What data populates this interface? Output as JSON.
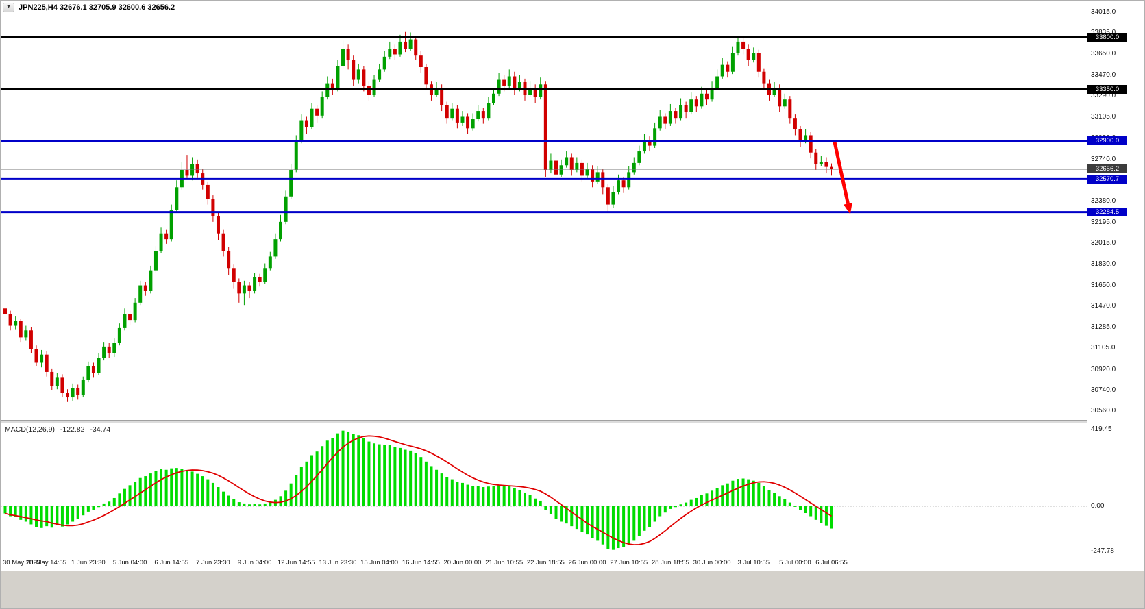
{
  "window": {
    "collapse_button": "▼",
    "symbol_title": "JPN225,H4",
    "ohlc_readout": "32676.1 32705.9 32600.6 32656.2"
  },
  "chart_data": [
    {
      "type": "candlestick",
      "symbol": "JPN225",
      "timeframe": "H4",
      "last_ohlc": [
        32676.1,
        32705.9,
        32600.6,
        32656.2
      ],
      "y_range": [
        30520,
        34080
      ],
      "y_axis_ticks": [
        34015.0,
        33835.0,
        33650.0,
        33470.0,
        33290.0,
        33105.0,
        32925.0,
        32740.0,
        32560.0,
        32380.0,
        32195.0,
        32015.0,
        31830.0,
        31650.0,
        31470.0,
        31285.0,
        31105.0,
        30920.0,
        30740.0,
        30560.0
      ],
      "bull_color": "#00A000",
      "bear_color": "#D10000",
      "levels": [
        {
          "price": 33800.0,
          "label": "33800.0",
          "color": "#000000",
          "width": 2.5,
          "badge_color": "#000000"
        },
        {
          "price": 33350.0,
          "label": "33350.0",
          "color": "#000000",
          "width": 2.5,
          "badge_color": "#000000"
        },
        {
          "price": 32900.0,
          "label": "32900.0",
          "color": "#0000C8",
          "width": 3,
          "badge_color": "#0000C8"
        },
        {
          "price": 32656.2,
          "label": "32656.2",
          "color": "#777777",
          "width": 1,
          "badge_color": "#3c3c3c"
        },
        {
          "price": 32570.7,
          "label": "32570.7",
          "color": "#0000C8",
          "width": 3,
          "badge_color": "#0000C8"
        },
        {
          "price": 32284.5,
          "label": "32284.5",
          "color": "#0000C8",
          "width": 3,
          "badge_color": "#0000C8"
        }
      ],
      "annotation_arrow": {
        "from_index": 159.6,
        "from_price": 32890,
        "to_index": 162.6,
        "to_price": 32265,
        "color": "#FF0000"
      },
      "time_labels": [
        "30 May 2023",
        "31 May 14:55",
        "1 Jun 23:30",
        "5 Jun 04:00",
        "6 Jun 14:55",
        "7 Jun 23:30",
        "9 Jun 04:00",
        "12 Jun 14:55",
        "13 Jun 23:30",
        "15 Jun 04:00",
        "16 Jun 14:55",
        "20 Jun 00:00",
        "21 Jun 10:55",
        "22 Jun 18:55",
        "26 Jun 00:00",
        "27 Jun 10:55",
        "28 Jun 18:55",
        "30 Jun 00:00",
        "3 Jul 10:55",
        "5 Jul 00:00",
        "6 Jul 06:55"
      ],
      "time_label_indices": [
        0,
        8,
        16,
        24,
        32,
        40,
        48,
        56,
        64,
        72,
        80,
        88,
        96,
        104,
        112,
        120,
        128,
        136,
        144,
        152,
        159
      ],
      "candles": [
        [
          31450,
          31480,
          31370,
          31400
        ],
        [
          31400,
          31430,
          31260,
          31300
        ],
        [
          31300,
          31380,
          31270,
          31340
        ],
        [
          31340,
          31360,
          31160,
          31200
        ],
        [
          31200,
          31300,
          31170,
          31260
        ],
        [
          31260,
          31290,
          31060,
          31100
        ],
        [
          31100,
          31130,
          30950,
          30980
        ],
        [
          30980,
          31090,
          30940,
          31050
        ],
        [
          31050,
          31080,
          30860,
          30900
        ],
        [
          30900,
          30930,
          30740,
          30780
        ],
        [
          30780,
          30890,
          30750,
          30850
        ],
        [
          30850,
          30880,
          30680,
          30720
        ],
        [
          30720,
          30750,
          30640,
          30680
        ],
        [
          30680,
          30800,
          30650,
          30760
        ],
        [
          30760,
          30790,
          30660,
          30700
        ],
        [
          30700,
          30860,
          30680,
          30830
        ],
        [
          30830,
          30990,
          30810,
          30950
        ],
        [
          30950,
          30980,
          30850,
          30890
        ],
        [
          30890,
          31060,
          30870,
          31020
        ],
        [
          31020,
          31160,
          31000,
          31120
        ],
        [
          31120,
          31150,
          31020,
          31060
        ],
        [
          31060,
          31190,
          31030,
          31150
        ],
        [
          31150,
          31320,
          31130,
          31280
        ],
        [
          31280,
          31450,
          31260,
          31400
        ],
        [
          31400,
          31430,
          31310,
          31350
        ],
        [
          31350,
          31540,
          31330,
          31500
        ],
        [
          31500,
          31690,
          31480,
          31650
        ],
        [
          31650,
          31680,
          31560,
          31600
        ],
        [
          31600,
          31820,
          31580,
          31780
        ],
        [
          31780,
          31990,
          31760,
          31950
        ],
        [
          31950,
          32150,
          31930,
          32100
        ],
        [
          32100,
          32130,
          32010,
          32050
        ],
        [
          32050,
          32350,
          32030,
          32300
        ],
        [
          32300,
          32560,
          32280,
          32500
        ],
        [
          32500,
          32720,
          32480,
          32650
        ],
        [
          32650,
          32780,
          32580,
          32600
        ],
        [
          32600,
          32760,
          32560,
          32700
        ],
        [
          32700,
          32740,
          32580,
          32620
        ],
        [
          32620,
          32660,
          32480,
          32520
        ],
        [
          32520,
          32550,
          32350,
          32400
        ],
        [
          32400,
          32430,
          32200,
          32250
        ],
        [
          32250,
          32280,
          32040,
          32100
        ],
        [
          32100,
          32130,
          31900,
          31950
        ],
        [
          31950,
          31980,
          31740,
          31800
        ],
        [
          31800,
          31830,
          31620,
          31680
        ],
        [
          31680,
          31710,
          31500,
          31580
        ],
        [
          31580,
          31690,
          31480,
          31650
        ],
        [
          31650,
          31680,
          31540,
          31600
        ],
        [
          31600,
          31760,
          31580,
          31720
        ],
        [
          31720,
          31750,
          31640,
          31680
        ],
        [
          31680,
          31840,
          31660,
          31800
        ],
        [
          31800,
          31940,
          31780,
          31900
        ],
        [
          31900,
          32100,
          31880,
          32050
        ],
        [
          32050,
          32260,
          32030,
          32200
        ],
        [
          32200,
          32470,
          32180,
          32420
        ],
        [
          32420,
          32700,
          32400,
          32650
        ],
        [
          32650,
          32950,
          32630,
          32900
        ],
        [
          32900,
          33130,
          32880,
          33080
        ],
        [
          33080,
          33110,
          32960,
          33020
        ],
        [
          33020,
          33230,
          33000,
          33180
        ],
        [
          33180,
          33210,
          33060,
          33120
        ],
        [
          33120,
          33330,
          33100,
          33280
        ],
        [
          33280,
          33460,
          33260,
          33400
        ],
        [
          33400,
          33440,
          33300,
          33350
        ],
        [
          33350,
          33600,
          33330,
          33550
        ],
        [
          33550,
          33770,
          33530,
          33700
        ],
        [
          33700,
          33740,
          33520,
          33600
        ],
        [
          33600,
          33640,
          33380,
          33430
        ],
        [
          33430,
          33570,
          33400,
          33520
        ],
        [
          33520,
          33550,
          33330,
          33380
        ],
        [
          33380,
          33420,
          33250,
          33300
        ],
        [
          33300,
          33470,
          33280,
          33430
        ],
        [
          33430,
          33570,
          33410,
          33520
        ],
        [
          33520,
          33680,
          33500,
          33630
        ],
        [
          33630,
          33760,
          33610,
          33700
        ],
        [
          33700,
          33740,
          33600,
          33650
        ],
        [
          33650,
          33820,
          33630,
          33760
        ],
        [
          33760,
          33850,
          33670,
          33700
        ],
        [
          33700,
          33840,
          33680,
          33780
        ],
        [
          33780,
          33810,
          33600,
          33640
        ],
        [
          33640,
          33680,
          33490,
          33540
        ],
        [
          33540,
          33570,
          33340,
          33390
        ],
        [
          33390,
          33420,
          33250,
          33300
        ],
        [
          33300,
          33410,
          33280,
          33360
        ],
        [
          33360,
          33390,
          33160,
          33210
        ],
        [
          33210,
          33240,
          33050,
          33100
        ],
        [
          33100,
          33230,
          33080,
          33180
        ],
        [
          33180,
          33210,
          33010,
          33060
        ],
        [
          33060,
          33160,
          33030,
          33110
        ],
        [
          33110,
          33140,
          32960,
          33010
        ],
        [
          33010,
          33140,
          32990,
          33090
        ],
        [
          33090,
          33210,
          33070,
          33160
        ],
        [
          33160,
          33190,
          33050,
          33100
        ],
        [
          33100,
          33280,
          33080,
          33230
        ],
        [
          33230,
          33360,
          33210,
          33310
        ],
        [
          33310,
          33490,
          33290,
          33430
        ],
        [
          33430,
          33470,
          33330,
          33380
        ],
        [
          33380,
          33520,
          33360,
          33460
        ],
        [
          33460,
          33500,
          33300,
          33350
        ],
        [
          33350,
          33470,
          33330,
          33410
        ],
        [
          33410,
          33440,
          33250,
          33300
        ],
        [
          33300,
          33420,
          33280,
          33360
        ],
        [
          33360,
          33390,
          33230,
          33280
        ],
        [
          33280,
          33450,
          33260,
          33390
        ],
        [
          33390,
          33420,
          32590,
          32650
        ],
        [
          32650,
          32790,
          32620,
          32730
        ],
        [
          32730,
          32760,
          32560,
          32610
        ],
        [
          32610,
          32740,
          32590,
          32690
        ],
        [
          32690,
          32810,
          32670,
          32760
        ],
        [
          32760,
          32790,
          32600,
          32650
        ],
        [
          32650,
          32760,
          32630,
          32710
        ],
        [
          32710,
          32740,
          32550,
          32600
        ],
        [
          32600,
          32710,
          32580,
          32660
        ],
        [
          32660,
          32690,
          32500,
          32550
        ],
        [
          32550,
          32680,
          32530,
          32630
        ],
        [
          32630,
          32660,
          32440,
          32500
        ],
        [
          32500,
          32530,
          32290,
          32350
        ],
        [
          32350,
          32510,
          32320,
          32460
        ],
        [
          32460,
          32610,
          32440,
          32560
        ],
        [
          32560,
          32590,
          32450,
          32500
        ],
        [
          32500,
          32680,
          32480,
          32630
        ],
        [
          32630,
          32760,
          32610,
          32710
        ],
        [
          32710,
          32860,
          32690,
          32810
        ],
        [
          32810,
          32960,
          32790,
          32910
        ],
        [
          32910,
          32940,
          32810,
          32860
        ],
        [
          32860,
          33060,
          32840,
          33010
        ],
        [
          33010,
          33170,
          32990,
          33110
        ],
        [
          33110,
          33140,
          33000,
          33050
        ],
        [
          33050,
          33220,
          33030,
          33160
        ],
        [
          33160,
          33190,
          33050,
          33100
        ],
        [
          33100,
          33270,
          33080,
          33210
        ],
        [
          33210,
          33240,
          33100,
          33150
        ],
        [
          33150,
          33320,
          33130,
          33260
        ],
        [
          33260,
          33290,
          33150,
          33200
        ],
        [
          33200,
          33370,
          33180,
          33310
        ],
        [
          33310,
          33340,
          33210,
          33260
        ],
        [
          33260,
          33420,
          33240,
          33360
        ],
        [
          33360,
          33520,
          33340,
          33460
        ],
        [
          33460,
          33620,
          33440,
          33560
        ],
        [
          33560,
          33590,
          33450,
          33500
        ],
        [
          33500,
          33720,
          33480,
          33660
        ],
        [
          33660,
          33810,
          33640,
          33760
        ],
        [
          33760,
          33800,
          33650,
          33700
        ],
        [
          33700,
          33740,
          33550,
          33600
        ],
        [
          33600,
          33710,
          33580,
          33660
        ],
        [
          33660,
          33690,
          33450,
          33500
        ],
        [
          33500,
          33530,
          33350,
          33400
        ],
        [
          33400,
          33430,
          33250,
          33300
        ],
        [
          33300,
          33410,
          33280,
          33360
        ],
        [
          33360,
          33390,
          33150,
          33200
        ],
        [
          33200,
          33310,
          33180,
          33260
        ],
        [
          33260,
          33290,
          33050,
          33100
        ],
        [
          33100,
          33130,
          32950,
          33000
        ],
        [
          33000,
          33030,
          32850,
          32900
        ],
        [
          32900,
          33000,
          32880,
          32950
        ],
        [
          32950,
          32980,
          32750,
          32800
        ],
        [
          32800,
          32830,
          32650,
          32700
        ],
        [
          32700,
          32770,
          32680,
          32720
        ],
        [
          32720,
          32760,
          32620,
          32676.1
        ],
        [
          32676.1,
          32705.9,
          32600.6,
          32656.2
        ]
      ]
    },
    {
      "type": "bar",
      "indicator_label": "MACD(12,26,9)",
      "macd_value": "-122.82",
      "signal_value": "-34.74",
      "y_axis_ticks": [
        "419.45",
        "0.00",
        "-247.78"
      ],
      "y_range": [
        -260,
        440
      ],
      "signal_period": 9,
      "hist_color": "#00DC00",
      "signal_color": "#E00000",
      "histogram": [
        -40,
        -55,
        -60,
        -75,
        -85,
        -100,
        -115,
        -120,
        -110,
        -118,
        -105,
        -112,
        -100,
        -85,
        -70,
        -50,
        -30,
        -20,
        -5,
        15,
        25,
        45,
        70,
        95,
        115,
        135,
        155,
        165,
        180,
        195,
        205,
        200,
        208,
        210,
        205,
        198,
        190,
        178,
        165,
        148,
        128,
        105,
        80,
        58,
        38,
        22,
        15,
        10,
        12,
        10,
        15,
        22,
        35,
        55,
        85,
        125,
        170,
        215,
        245,
        280,
        300,
        330,
        360,
        375,
        400,
        415,
        410,
        395,
        390,
        375,
        355,
        345,
        340,
        338,
        335,
        325,
        320,
        310,
        305,
        290,
        270,
        245,
        220,
        200,
        180,
        160,
        148,
        135,
        128,
        118,
        112,
        110,
        105,
        108,
        112,
        118,
        115,
        112,
        100,
        90,
        75,
        60,
        42,
        30,
        -20,
        -45,
        -70,
        -85,
        -95,
        -110,
        -125,
        -140,
        -155,
        -175,
        -190,
        -210,
        -235,
        -240,
        -230,
        -225,
        -210,
        -190,
        -165,
        -135,
        -115,
        -85,
        -55,
        -35,
        -15,
        -5,
        10,
        20,
        35,
        45,
        60,
        70,
        85,
        100,
        115,
        125,
        140,
        150,
        152,
        148,
        140,
        128,
        110,
        90,
        72,
        55,
        38,
        20,
        0,
        -20,
        -38,
        -55,
        -75,
        -92,
        -108,
        -122.82
      ]
    }
  ]
}
